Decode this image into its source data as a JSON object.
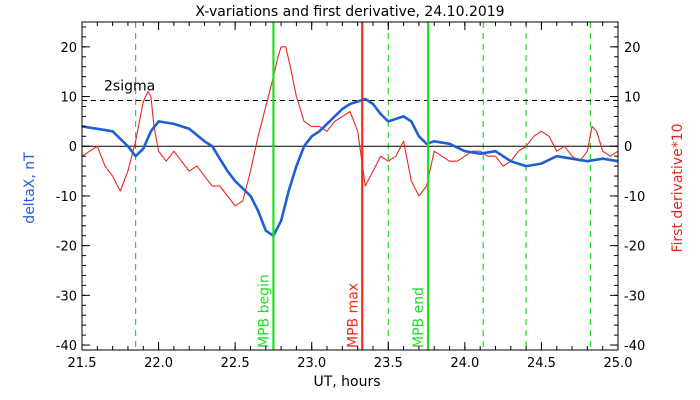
{
  "chart_data": {
    "type": "line",
    "title": "X-variations and first derivative, 24.10.2019",
    "xlabel": "UT, hours",
    "ylabel_left": "deltaX, nT",
    "ylabel_right": "First derivative*10",
    "xlim": [
      21.5,
      25.0
    ],
    "ylim": [
      -41,
      25
    ],
    "xticks": [
      "21.5",
      "22.0",
      "22.5",
      "23.0",
      "23.5",
      "24.0",
      "24.5",
      "25.0"
    ],
    "yticks": [
      "-40",
      "-30",
      "-20",
      "-10",
      "0",
      "10",
      "20"
    ],
    "threshold": {
      "label": "2sigma",
      "value": 9.2
    },
    "colors": {
      "deltaX": "#1f5fd6",
      "derivative": "#e8281e",
      "event_line": "#22dd22",
      "mpb_max": "#ee2b1f",
      "axis": "#000000"
    },
    "series": [
      {
        "name": "deltaX",
        "x": [
          21.5,
          21.6,
          21.7,
          21.8,
          21.85,
          21.9,
          21.95,
          22.0,
          22.1,
          22.2,
          22.3,
          22.35,
          22.4,
          22.45,
          22.5,
          22.55,
          22.6,
          22.65,
          22.7,
          22.75,
          22.8,
          22.85,
          22.9,
          22.95,
          23.0,
          23.05,
          23.1,
          23.15,
          23.2,
          23.25,
          23.3,
          23.35,
          23.4,
          23.45,
          23.5,
          23.55,
          23.6,
          23.65,
          23.7,
          23.75,
          23.8,
          23.9,
          24.0,
          24.1,
          24.2,
          24.3,
          24.4,
          24.5,
          24.6,
          24.7,
          24.8,
          24.9,
          25.0
        ],
        "y": [
          4.0,
          3.5,
          3.0,
          0.0,
          -2.0,
          -0.5,
          3.0,
          5.0,
          4.5,
          3.5,
          1.0,
          0.0,
          -2.5,
          -5.0,
          -7.0,
          -8.5,
          -10.0,
          -13.0,
          -17.0,
          -18.0,
          -15.0,
          -9.0,
          -4.0,
          0.0,
          2.0,
          3.0,
          4.5,
          6.0,
          7.5,
          8.5,
          9.0,
          9.5,
          8.5,
          6.5,
          5.0,
          5.5,
          6.0,
          5.0,
          2.0,
          0.5,
          1.0,
          0.5,
          -1.0,
          -1.5,
          -1.0,
          -3.0,
          -4.0,
          -3.5,
          -2.0,
          -2.5,
          -3.0,
          -2.5,
          -3.0
        ]
      },
      {
        "name": "derivative",
        "x": [
          21.5,
          21.55,
          21.6,
          21.65,
          21.7,
          21.75,
          21.8,
          21.85,
          21.9,
          21.93,
          21.95,
          21.97,
          22.0,
          22.05,
          22.1,
          22.15,
          22.2,
          22.25,
          22.3,
          22.35,
          22.4,
          22.45,
          22.5,
          22.55,
          22.6,
          22.65,
          22.7,
          22.75,
          22.78,
          22.8,
          22.83,
          22.86,
          22.9,
          22.95,
          23.0,
          23.05,
          23.1,
          23.15,
          23.2,
          23.25,
          23.3,
          23.35,
          23.4,
          23.45,
          23.5,
          23.55,
          23.6,
          23.65,
          23.7,
          23.75,
          23.8,
          23.85,
          23.9,
          23.95,
          24.0,
          24.05,
          24.1,
          24.15,
          24.2,
          24.25,
          24.3,
          24.35,
          24.4,
          24.45,
          24.5,
          24.55,
          24.6,
          24.65,
          24.7,
          24.75,
          24.8,
          24.83,
          24.86,
          24.9,
          24.95,
          25.0
        ],
        "y": [
          -2.0,
          -1.0,
          0.0,
          -4.0,
          -6.0,
          -9.0,
          -5.0,
          1.0,
          9.0,
          11.0,
          10.0,
          4.0,
          -1.0,
          -3.0,
          -1.0,
          -3.0,
          -5.0,
          -4.0,
          -6.0,
          -8.0,
          -8.0,
          -10.0,
          -12.0,
          -11.0,
          -5.0,
          2.0,
          8.0,
          14.0,
          18.0,
          20.0,
          20.0,
          16.0,
          10.0,
          5.0,
          4.0,
          4.0,
          3.0,
          5.0,
          6.0,
          7.0,
          3.0,
          -8.0,
          -5.0,
          -2.0,
          -3.0,
          -2.0,
          1.0,
          -7.0,
          -10.0,
          -8.0,
          -1.0,
          -2.0,
          -3.0,
          -3.0,
          -2.0,
          -1.0,
          -1.0,
          -2.0,
          -2.0,
          -4.0,
          -3.0,
          -1.0,
          0.0,
          2.0,
          3.0,
          2.0,
          -1.0,
          0.0,
          -2.0,
          -3.0,
          -1.0,
          4.0,
          3.0,
          -1.0,
          -2.0,
          -1.0
        ]
      }
    ],
    "dashed_markers_x": [
      21.85,
      22.75,
      23.5,
      24.12,
      24.4,
      24.82
    ],
    "event_lines": [
      {
        "label": "MPB begin",
        "x": 22.75,
        "color_key": "event_line"
      },
      {
        "label": "MPB max",
        "x": 23.33,
        "color_key": "mpb_max"
      },
      {
        "label": "MPB end",
        "x": 23.76,
        "color_key": "event_line"
      }
    ]
  }
}
